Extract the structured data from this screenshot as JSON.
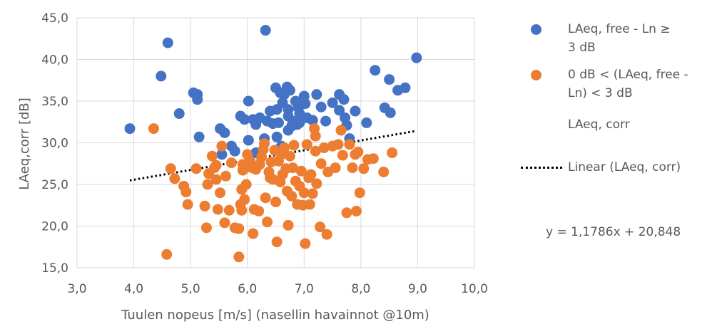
{
  "chart_data": {
    "type": "scatter",
    "xlabel": "Tuulen nopeus [m/s] (nasellin havainnot @10m)",
    "ylabel": "LAeq,corr [dB]",
    "xlim": [
      3,
      10
    ],
    "ylim": [
      15,
      45
    ],
    "x_ticks": [
      "3,0",
      "4,0",
      "5,0",
      "6,0",
      "7,0",
      "8,0",
      "9,0",
      "10,0"
    ],
    "y_ticks": [
      "15,0",
      "20,0",
      "25,0",
      "30,0",
      "35,0",
      "40,0",
      "45,0"
    ],
    "grid": "both",
    "legend_position": "right",
    "series": [
      {
        "name": "LAeq, free - Ln ≥\n3 dB",
        "color": "#4472C4",
        "points": [
          [
            3.93,
            31.7
          ],
          [
            4.48,
            38.0
          ],
          [
            4.6,
            42.0
          ],
          [
            4.8,
            33.5
          ],
          [
            5.05,
            36.0
          ],
          [
            5.12,
            35.2
          ],
          [
            5.12,
            35.8
          ],
          [
            5.15,
            30.7
          ],
          [
            5.52,
            31.7
          ],
          [
            5.6,
            31.2
          ],
          [
            5.55,
            28.6
          ],
          [
            5.72,
            29.6
          ],
          [
            5.78,
            29.0
          ],
          [
            5.88,
            33.2
          ],
          [
            5.95,
            32.8
          ],
          [
            6.02,
            35.0
          ],
          [
            6.02,
            30.3
          ],
          [
            6.1,
            32.8
          ],
          [
            6.15,
            32.2
          ],
          [
            6.22,
            33.0
          ],
          [
            6.15,
            28.8
          ],
          [
            6.32,
            43.5
          ],
          [
            6.3,
            30.5
          ],
          [
            6.35,
            32.6
          ],
          [
            6.45,
            32.3
          ],
          [
            6.5,
            36.6
          ],
          [
            6.52,
            34.0
          ],
          [
            6.55,
            32.4
          ],
          [
            6.58,
            36.0
          ],
          [
            6.6,
            29.6
          ],
          [
            6.52,
            30.7
          ],
          [
            6.65,
            35.8
          ],
          [
            6.7,
            36.7
          ],
          [
            6.72,
            34.0
          ],
          [
            6.72,
            33.2
          ],
          [
            6.75,
            36.3
          ],
          [
            6.78,
            32.0
          ],
          [
            6.8,
            32.6
          ],
          [
            6.85,
            35.0
          ],
          [
            6.88,
            32.2
          ],
          [
            6.9,
            34.2
          ],
          [
            6.92,
            33.5
          ],
          [
            6.92,
            32.4
          ],
          [
            6.98,
            35.0
          ],
          [
            7.0,
            35.6
          ],
          [
            7.02,
            34.7
          ],
          [
            7.15,
            32.7
          ],
          [
            7.22,
            35.8
          ],
          [
            7.3,
            34.3
          ],
          [
            7.38,
            32.6
          ],
          [
            7.5,
            34.8
          ],
          [
            7.62,
            35.8
          ],
          [
            7.62,
            33.9
          ],
          [
            7.7,
            35.2
          ],
          [
            7.72,
            33.0
          ],
          [
            7.75,
            32.1
          ],
          [
            7.8,
            30.5
          ],
          [
            7.9,
            33.8
          ],
          [
            8.1,
            32.4
          ],
          [
            8.25,
            38.7
          ],
          [
            8.42,
            34.2
          ],
          [
            8.5,
            37.6
          ],
          [
            8.52,
            33.6
          ],
          [
            8.65,
            36.3
          ],
          [
            8.78,
            36.6
          ],
          [
            8.98,
            40.2
          ],
          [
            6.72,
            31.5
          ],
          [
            6.62,
            34.8
          ],
          [
            6.4,
            33.8
          ],
          [
            7.05,
            33.0
          ]
        ]
      },
      {
        "name": "0 dB < (LAeq, free -\nLn) < 3 dB",
        "color": "#ED7D31",
        "points": [
          [
            4.35,
            31.7
          ],
          [
            4.58,
            16.6
          ],
          [
            4.65,
            26.9
          ],
          [
            4.72,
            25.7
          ],
          [
            4.88,
            24.8
          ],
          [
            4.92,
            24.1
          ],
          [
            4.95,
            22.6
          ],
          [
            5.1,
            26.9
          ],
          [
            5.25,
            22.4
          ],
          [
            5.28,
            19.8
          ],
          [
            5.3,
            25.0
          ],
          [
            5.32,
            26.3
          ],
          [
            5.38,
            28.4
          ],
          [
            5.42,
            27.0
          ],
          [
            5.45,
            25.6
          ],
          [
            5.48,
            22.0
          ],
          [
            5.52,
            24.0
          ],
          [
            5.55,
            29.6
          ],
          [
            5.6,
            20.4
          ],
          [
            5.62,
            26.0
          ],
          [
            5.68,
            21.9
          ],
          [
            5.72,
            27.6
          ],
          [
            5.78,
            19.8
          ],
          [
            5.85,
            16.3
          ],
          [
            5.85,
            19.7
          ],
          [
            5.88,
            22.6
          ],
          [
            5.9,
            21.9
          ],
          [
            5.9,
            24.4
          ],
          [
            5.92,
            26.7
          ],
          [
            5.92,
            27.4
          ],
          [
            5.95,
            23.2
          ],
          [
            5.98,
            25.0
          ],
          [
            6.0,
            28.6
          ],
          [
            6.05,
            27.8
          ],
          [
            6.1,
            19.1
          ],
          [
            6.12,
            22.0
          ],
          [
            6.15,
            26.8
          ],
          [
            6.2,
            21.8
          ],
          [
            6.22,
            27.4
          ],
          [
            6.25,
            28.3
          ],
          [
            6.28,
            29.2
          ],
          [
            6.3,
            29.9
          ],
          [
            6.32,
            23.4
          ],
          [
            6.35,
            20.5
          ],
          [
            6.38,
            26.5
          ],
          [
            6.4,
            25.8
          ],
          [
            6.42,
            27.7
          ],
          [
            6.45,
            25.6
          ],
          [
            6.48,
            29.1
          ],
          [
            6.5,
            22.9
          ],
          [
            6.52,
            18.1
          ],
          [
            6.55,
            27.8
          ],
          [
            6.58,
            25.3
          ],
          [
            6.6,
            28.6
          ],
          [
            6.62,
            26.2
          ],
          [
            6.65,
            29.4
          ],
          [
            6.7,
            24.2
          ],
          [
            6.72,
            20.1
          ],
          [
            6.75,
            28.4
          ],
          [
            6.78,
            23.6
          ],
          [
            6.8,
            27.0
          ],
          [
            6.82,
            29.7
          ],
          [
            6.85,
            25.4
          ],
          [
            6.88,
            22.6
          ],
          [
            6.92,
            24.8
          ],
          [
            6.95,
            26.6
          ],
          [
            6.98,
            22.5
          ],
          [
            7.0,
            24.0
          ],
          [
            7.02,
            17.9
          ],
          [
            7.05,
            29.8
          ],
          [
            7.08,
            25.8
          ],
          [
            7.1,
            22.6
          ],
          [
            7.12,
            26.2
          ],
          [
            7.15,
            23.9
          ],
          [
            7.18,
            31.7
          ],
          [
            7.2,
            29.0
          ],
          [
            7.22,
            25.1
          ],
          [
            7.28,
            19.9
          ],
          [
            7.3,
            27.5
          ],
          [
            7.35,
            29.4
          ],
          [
            7.4,
            19.0
          ],
          [
            7.42,
            26.5
          ],
          [
            7.5,
            29.6
          ],
          [
            7.55,
            27.0
          ],
          [
            7.6,
            29.8
          ],
          [
            7.65,
            31.5
          ],
          [
            7.68,
            28.5
          ],
          [
            7.75,
            21.6
          ],
          [
            7.8,
            29.8
          ],
          [
            7.85,
            27.0
          ],
          [
            7.9,
            28.6
          ],
          [
            7.92,
            21.8
          ],
          [
            7.95,
            28.9
          ],
          [
            7.98,
            24.0
          ],
          [
            8.05,
            26.9
          ],
          [
            8.12,
            28.0
          ],
          [
            8.22,
            28.1
          ],
          [
            8.4,
            26.5
          ],
          [
            8.55,
            28.8
          ],
          [
            5.45,
            27.3
          ],
          [
            6.08,
            27.0
          ],
          [
            6.68,
            26.9
          ],
          [
            7.2,
            30.8
          ]
        ]
      }
    ],
    "trendline": {
      "name": "Linear (LAeq, corr)",
      "slope": 1.1786,
      "intercept": 20.848,
      "x_range": [
        3.93,
        8.98
      ],
      "equation": "y = 1,1786x + 20,848",
      "color": "#000000"
    },
    "extra_legend_entry": "LAeq, corr"
  }
}
